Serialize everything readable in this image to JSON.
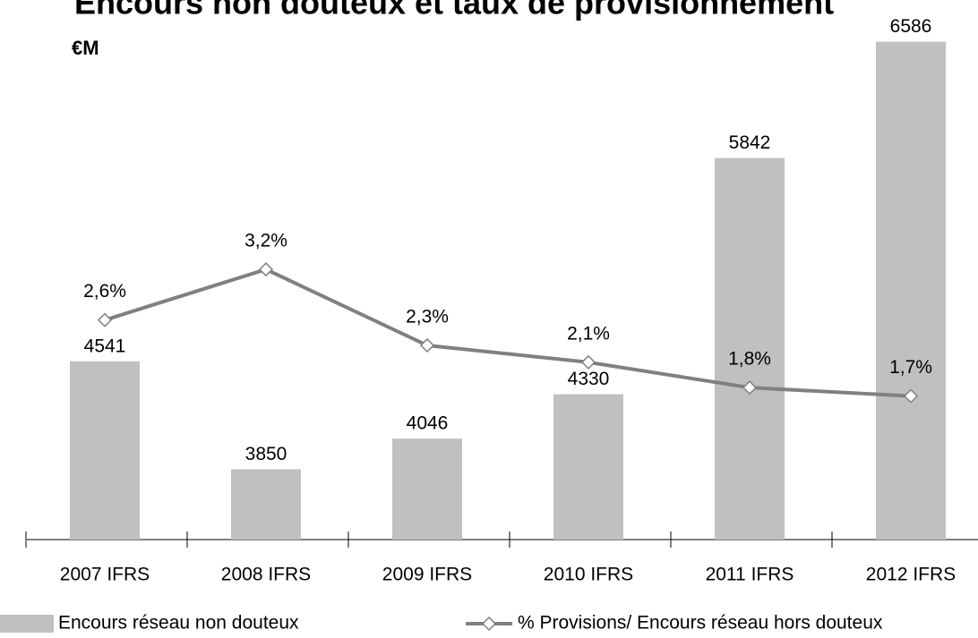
{
  "chart_data": {
    "type": "bar_line",
    "title": "Encours non douteux et taux de provisionnement",
    "subtitle": "€M",
    "categories": [
      "2007 IFRS",
      "2008 IFRS",
      "2009 IFRS",
      "2010 IFRS",
      "2011 IFRS",
      "2012 IFRS"
    ],
    "series": [
      {
        "name": "Encours réseau non douteux",
        "type": "bar",
        "color": "#c0c0c0",
        "values": [
          4541,
          3850,
          4046,
          4330,
          5842,
          6586
        ]
      },
      {
        "name": "% Provisions/ Encours réseau hors douteux",
        "type": "line",
        "axis": "y2",
        "color": "#808080",
        "values": [
          2.6,
          3.2,
          2.3,
          2.1,
          1.8,
          1.7
        ],
        "value_labels": [
          "2,6%",
          "3,2%",
          "2,3%",
          "2,1%",
          "1,8%",
          "1,7%"
        ]
      }
    ],
    "ylim": [
      3400,
      6750
    ],
    "y2lim": [
      0,
      6.2
    ],
    "grid": false
  }
}
